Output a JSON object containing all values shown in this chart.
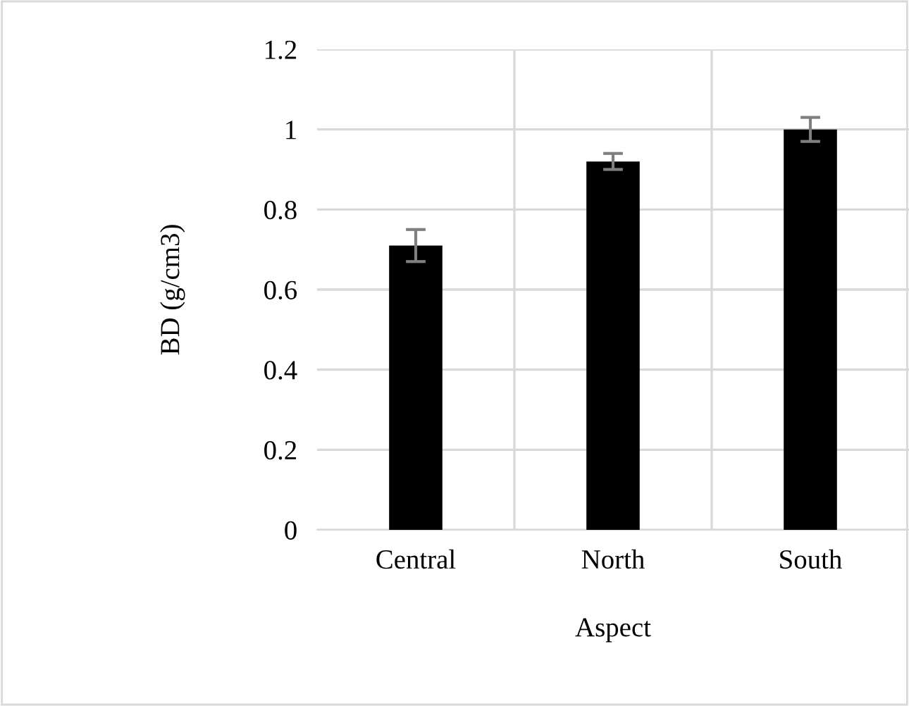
{
  "chart_data": {
    "type": "bar",
    "xlabel": "Aspect",
    "ylabel": "BD (g/cm3)",
    "categories": [
      "Central",
      "North",
      "South"
    ],
    "values": [
      0.71,
      0.92,
      1.0
    ],
    "errors": [
      0.04,
      0.02,
      0.03
    ],
    "color": "#000000",
    "ylim": [
      0,
      1.2
    ],
    "yticks": [
      {
        "value": 0,
        "label": "0"
      },
      0.2,
      0.4,
      0.6,
      0.8,
      {
        "value": 1,
        "label": "1"
      },
      1.2
    ],
    "grid": true,
    "legend": false
  }
}
